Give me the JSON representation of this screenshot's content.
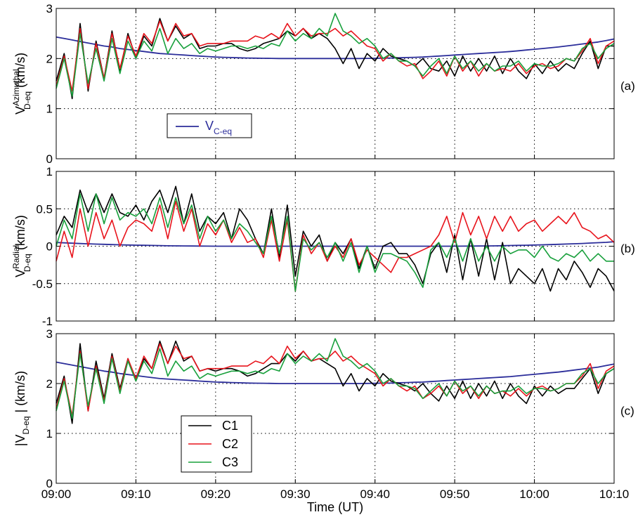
{
  "figure": {
    "xlabel": "Time (UT)",
    "x_tick_labels": [
      "09:00",
      "09:10",
      "09:20",
      "09:30",
      "09:40",
      "09:50",
      "10:00",
      "10:10"
    ]
  },
  "colors": {
    "C1": "#000000",
    "C2": "#e8141c",
    "C3": "#18a03c",
    "model": "#2b2d9a"
  },
  "chart_data": [
    {
      "type": "line",
      "panel_label": "(a)",
      "ylabel": {
        "prefix": "V",
        "superscript": "Azimuthal",
        "subscript": "D-eq",
        "unit": "(km/s)"
      },
      "xlim_minutes": [
        0,
        70
      ],
      "ylim": [
        0,
        3
      ],
      "yticks": [
        0,
        1,
        2,
        3
      ],
      "ytick_labels": [
        "0",
        "1",
        "2",
        "3"
      ],
      "grid": true,
      "legend": {
        "position": "lower-left",
        "entries": [
          {
            "label_main": "V",
            "label_sub": "C-eq",
            "series": "model"
          }
        ]
      },
      "series": [
        {
          "key": "C1",
          "values": [
            1.55,
            2.1,
            1.2,
            2.7,
            1.35,
            2.35,
            1.6,
            2.55,
            1.75,
            2.5,
            2.0,
            2.45,
            2.25,
            2.8,
            2.35,
            2.65,
            2.4,
            2.5,
            2.2,
            2.25,
            2.25,
            2.3,
            2.3,
            2.2,
            2.15,
            2.2,
            2.3,
            2.35,
            2.4,
            2.55,
            2.45,
            2.6,
            2.4,
            2.5,
            2.4,
            2.2,
            1.9,
            2.2,
            1.8,
            2.1,
            1.95,
            2.2,
            2.05,
            2.0,
            1.95,
            1.85,
            2.0,
            1.8,
            1.75,
            1.95,
            1.65,
            2.05,
            1.75,
            2.0,
            1.75,
            2.05,
            1.7,
            2.0,
            1.75,
            1.6,
            1.9,
            1.7,
            1.95,
            1.75,
            1.9,
            1.8,
            2.1,
            2.35,
            1.8,
            2.25,
            2.25
          ]
        },
        {
          "key": "C2",
          "values": [
            1.45,
            2.05,
            1.35,
            2.6,
            1.4,
            2.3,
            1.6,
            2.5,
            1.8,
            2.45,
            2.05,
            2.5,
            2.3,
            2.75,
            2.35,
            2.7,
            2.45,
            2.5,
            2.25,
            2.3,
            2.3,
            2.3,
            2.35,
            2.35,
            2.35,
            2.45,
            2.4,
            2.5,
            2.4,
            2.7,
            2.45,
            2.6,
            2.45,
            2.5,
            2.5,
            2.6,
            2.45,
            2.55,
            2.4,
            2.25,
            2.2,
            1.95,
            2.1,
            1.95,
            1.85,
            1.9,
            1.6,
            1.75,
            1.95,
            1.65,
            2.05,
            1.75,
            1.95,
            1.65,
            1.9,
            1.75,
            1.8,
            1.75,
            1.9,
            1.7,
            1.85,
            1.9,
            1.8,
            1.85,
            2.0,
            1.95,
            2.15,
            2.4,
            1.9,
            2.25,
            2.35
          ]
        },
        {
          "key": "C3",
          "values": [
            1.4,
            2.0,
            1.25,
            2.5,
            1.5,
            2.2,
            1.55,
            2.4,
            1.7,
            2.35,
            2.0,
            2.35,
            2.15,
            2.6,
            2.1,
            2.4,
            2.2,
            2.3,
            2.1,
            2.2,
            2.15,
            2.2,
            2.25,
            2.25,
            2.2,
            2.25,
            2.2,
            2.3,
            2.25,
            2.55,
            2.35,
            2.5,
            2.4,
            2.6,
            2.45,
            2.9,
            2.55,
            2.45,
            2.3,
            2.4,
            2.25,
            2.0,
            2.1,
            1.95,
            1.95,
            1.85,
            1.65,
            1.85,
            2.0,
            1.7,
            2.05,
            1.8,
            1.95,
            1.75,
            1.9,
            1.75,
            1.85,
            1.85,
            1.95,
            1.75,
            1.9,
            1.85,
            1.85,
            1.9,
            2.0,
            1.95,
            2.2,
            2.3,
            2.0,
            2.2,
            2.3
          ]
        },
        {
          "key": "model",
          "values": [
            2.43,
            2.4,
            2.37,
            2.34,
            2.31,
            2.28,
            2.25,
            2.23,
            2.2,
            2.18,
            2.16,
            2.14,
            2.12,
            2.1,
            2.09,
            2.08,
            2.07,
            2.06,
            2.05,
            2.04,
            2.03,
            2.025,
            2.02,
            2.015,
            2.01,
            2.007,
            2.005,
            2.003,
            2.0,
            2.0,
            2.0,
            2.0,
            2.0,
            2.0,
            2.0,
            2.0,
            2.0,
            2.0,
            2.0,
            2.003,
            2.005,
            2.008,
            2.01,
            2.015,
            2.02,
            2.025,
            2.03,
            2.04,
            2.05,
            2.06,
            2.07,
            2.08,
            2.09,
            2.1,
            2.11,
            2.12,
            2.13,
            2.14,
            2.155,
            2.17,
            2.185,
            2.2,
            2.215,
            2.23,
            2.25,
            2.27,
            2.29,
            2.31,
            2.33,
            2.36,
            2.39
          ]
        }
      ]
    },
    {
      "type": "line",
      "panel_label": "(b)",
      "ylabel": {
        "prefix": "V",
        "superscript": "Radial",
        "subscript": "D-eq",
        "unit": "(km/s)"
      },
      "xlim_minutes": [
        0,
        70
      ],
      "ylim": [
        -1,
        1
      ],
      "yticks": [
        -1,
        -0.5,
        0,
        0.5,
        1
      ],
      "ytick_labels": [
        "-1",
        "-0.5",
        "0",
        "0.5",
        "1"
      ],
      "grid": true,
      "series": [
        {
          "key": "C1",
          "values": [
            0.15,
            0.4,
            0.25,
            0.75,
            0.45,
            0.7,
            0.45,
            0.7,
            0.45,
            0.4,
            0.55,
            0.35,
            0.6,
            0.75,
            0.45,
            0.8,
            0.3,
            0.7,
            0.2,
            0.4,
            0.3,
            0.45,
            0.1,
            0.5,
            0.35,
            0.1,
            -0.1,
            0.5,
            -0.15,
            0.55,
            -0.4,
            0.2,
            0.0,
            0.15,
            -0.2,
            0.05,
            -0.1,
            0.1,
            -0.3,
            0.0,
            -0.3,
            0.0,
            0.05,
            -0.1,
            -0.1,
            -0.25,
            -0.5,
            -0.1,
            0.05,
            -0.35,
            0.15,
            -0.45,
            0.1,
            -0.4,
            0.1,
            -0.45,
            0.05,
            -0.5,
            -0.3,
            -0.4,
            -0.5,
            -0.3,
            -0.6,
            -0.3,
            -0.45,
            -0.2,
            -0.35,
            -0.55,
            -0.3,
            -0.4,
            -0.6
          ]
        },
        {
          "key": "C2",
          "values": [
            -0.2,
            0.2,
            -0.15,
            0.5,
            0.0,
            0.45,
            0.1,
            0.35,
            0.0,
            0.25,
            0.35,
            0.3,
            0.2,
            0.55,
            0.1,
            0.6,
            0.2,
            0.5,
            0.0,
            0.3,
            0.15,
            0.35,
            0.05,
            0.25,
            0.05,
            0.1,
            -0.15,
            0.35,
            -0.2,
            0.35,
            -0.6,
            0.15,
            -0.1,
            0.05,
            -0.2,
            0.0,
            -0.15,
            0.1,
            -0.25,
            -0.05,
            -0.15,
            -0.25,
            -0.35,
            -0.15,
            -0.15,
            -0.1,
            -0.05,
            0.0,
            0.15,
            0.4,
            0.05,
            0.45,
            0.15,
            0.4,
            0.1,
            0.4,
            0.2,
            0.4,
            0.2,
            0.3,
            0.35,
            0.2,
            0.3,
            0.4,
            0.3,
            0.45,
            0.25,
            0.2,
            0.1,
            0.15,
            0.05
          ]
        },
        {
          "key": "C3",
          "values": [
            0.0,
            0.35,
            0.1,
            0.7,
            0.2,
            0.7,
            0.3,
            0.65,
            0.35,
            0.45,
            0.4,
            0.5,
            0.3,
            0.65,
            0.25,
            0.65,
            0.3,
            0.55,
            0.1,
            0.4,
            0.2,
            0.35,
            0.1,
            0.3,
            0.2,
            0.05,
            -0.1,
            0.4,
            -0.1,
            0.4,
            -0.6,
            0.1,
            -0.05,
            0.05,
            -0.15,
            0.05,
            -0.2,
            0.05,
            -0.35,
            0.0,
            -0.35,
            -0.1,
            -0.1,
            -0.15,
            -0.2,
            -0.35,
            -0.55,
            -0.05,
            0.05,
            -0.15,
            0.1,
            -0.2,
            0.1,
            -0.2,
            0.0,
            -0.2,
            0.0,
            -0.1,
            -0.05,
            -0.05,
            -0.15,
            0.0,
            -0.15,
            -0.2,
            -0.1,
            -0.15,
            -0.05,
            -0.2,
            -0.1,
            -0.2,
            -0.2
          ]
        },
        {
          "key": "model",
          "values": [
            0.05,
            0.045,
            0.04,
            0.036,
            0.032,
            0.028,
            0.025,
            0.022,
            0.019,
            0.016,
            0.014,
            0.012,
            0.01,
            0.008,
            0.006,
            0.005,
            0.004,
            0.003,
            0.002,
            0.001,
            0.0,
            0.0,
            0.0,
            0.0,
            0.0,
            0.0,
            0.0,
            0.0,
            0.0,
            0.0,
            0.0,
            0.0,
            0.0,
            0.0,
            0.0,
            0.0,
            0.0,
            0.0,
            0.0,
            0.0,
            0.0,
            0.0,
            0.0,
            0.0,
            0.0,
            0.0,
            0.0,
            0.0,
            0.0,
            0.0,
            0.0,
            0.001,
            0.002,
            0.003,
            0.004,
            0.005,
            0.007,
            0.009,
            0.011,
            0.013,
            0.016,
            0.019,
            0.022,
            0.025,
            0.029,
            0.033,
            0.037,
            0.042,
            0.047,
            0.052,
            0.06
          ]
        }
      ]
    },
    {
      "type": "line",
      "panel_label": "(c)",
      "ylabel": {
        "prefix": "|V",
        "subscript": "D-eq",
        "suffix": " |",
        "unit": "(km/s)"
      },
      "xlim_minutes": [
        0,
        70
      ],
      "ylim": [
        0,
        3
      ],
      "yticks": [
        0,
        1,
        2,
        3
      ],
      "ytick_labels": [
        "0",
        "1",
        "2",
        "3"
      ],
      "grid": true,
      "legend": {
        "position": "lower-left",
        "entries": [
          {
            "label": "C1",
            "series": "C1"
          },
          {
            "label": "C2",
            "series": "C2"
          },
          {
            "label": "C3",
            "series": "C3"
          }
        ]
      },
      "series": [
        {
          "key": "C1",
          "values": [
            1.6,
            2.15,
            1.2,
            2.8,
            1.45,
            2.45,
            1.7,
            2.6,
            1.9,
            2.5,
            2.05,
            2.5,
            2.3,
            2.85,
            2.4,
            2.85,
            2.45,
            2.55,
            2.25,
            2.3,
            2.25,
            2.3,
            2.3,
            2.25,
            2.15,
            2.2,
            2.3,
            2.4,
            2.4,
            2.6,
            2.45,
            2.65,
            2.45,
            2.5,
            2.4,
            2.3,
            1.95,
            2.2,
            1.85,
            2.1,
            1.95,
            2.2,
            2.05,
            2.0,
            1.95,
            1.85,
            2.0,
            1.8,
            1.65,
            1.95,
            1.7,
            2.05,
            1.7,
            2.0,
            1.75,
            2.05,
            1.7,
            2.0,
            1.75,
            1.6,
            1.95,
            1.75,
            1.95,
            1.8,
            1.9,
            1.9,
            2.1,
            2.3,
            1.8,
            2.2,
            2.3
          ]
        },
        {
          "key": "C2",
          "values": [
            1.5,
            2.1,
            1.35,
            2.65,
            1.45,
            2.35,
            1.65,
            2.55,
            1.85,
            2.5,
            2.1,
            2.55,
            2.3,
            2.8,
            2.4,
            2.75,
            2.5,
            2.55,
            2.25,
            2.3,
            2.3,
            2.3,
            2.35,
            2.35,
            2.35,
            2.45,
            2.4,
            2.55,
            2.4,
            2.75,
            2.5,
            2.65,
            2.45,
            2.5,
            2.5,
            2.65,
            2.45,
            2.55,
            2.4,
            2.3,
            2.2,
            1.95,
            2.1,
            1.95,
            1.85,
            1.95,
            1.7,
            1.8,
            1.95,
            1.75,
            2.05,
            1.8,
            1.95,
            1.7,
            1.95,
            1.8,
            1.85,
            1.75,
            1.9,
            1.75,
            1.9,
            1.95,
            1.85,
            1.9,
            2.0,
            2.0,
            2.15,
            2.4,
            1.9,
            2.25,
            2.35
          ]
        },
        {
          "key": "C3",
          "values": [
            1.45,
            2.05,
            1.3,
            2.6,
            1.55,
            2.3,
            1.6,
            2.5,
            1.8,
            2.45,
            2.05,
            2.45,
            2.2,
            2.7,
            2.15,
            2.45,
            2.25,
            2.35,
            2.1,
            2.2,
            2.15,
            2.2,
            2.25,
            2.25,
            2.2,
            2.25,
            2.2,
            2.3,
            2.25,
            2.6,
            2.4,
            2.55,
            2.45,
            2.6,
            2.45,
            2.9,
            2.55,
            2.45,
            2.3,
            2.4,
            2.25,
            2.0,
            2.1,
            1.95,
            1.95,
            1.9,
            1.7,
            1.85,
            2.0,
            1.75,
            2.05,
            1.85,
            1.95,
            1.75,
            1.95,
            1.8,
            1.85,
            1.85,
            1.95,
            1.8,
            1.9,
            1.9,
            1.85,
            1.9,
            2.0,
            2.0,
            2.2,
            2.3,
            2.0,
            2.2,
            2.3
          ]
        },
        {
          "key": "model",
          "values": [
            2.43,
            2.4,
            2.37,
            2.34,
            2.31,
            2.28,
            2.25,
            2.23,
            2.2,
            2.18,
            2.16,
            2.14,
            2.12,
            2.1,
            2.09,
            2.08,
            2.07,
            2.06,
            2.05,
            2.04,
            2.03,
            2.025,
            2.02,
            2.015,
            2.01,
            2.007,
            2.005,
            2.003,
            2.0,
            2.0,
            2.0,
            2.0,
            2.0,
            2.0,
            2.0,
            2.0,
            2.0,
            2.0,
            2.0,
            2.003,
            2.005,
            2.008,
            2.01,
            2.015,
            2.02,
            2.025,
            2.03,
            2.04,
            2.05,
            2.06,
            2.07,
            2.08,
            2.09,
            2.1,
            2.11,
            2.12,
            2.13,
            2.14,
            2.155,
            2.17,
            2.185,
            2.2,
            2.215,
            2.23,
            2.25,
            2.27,
            2.29,
            2.31,
            2.33,
            2.36,
            2.39
          ]
        }
      ]
    }
  ]
}
